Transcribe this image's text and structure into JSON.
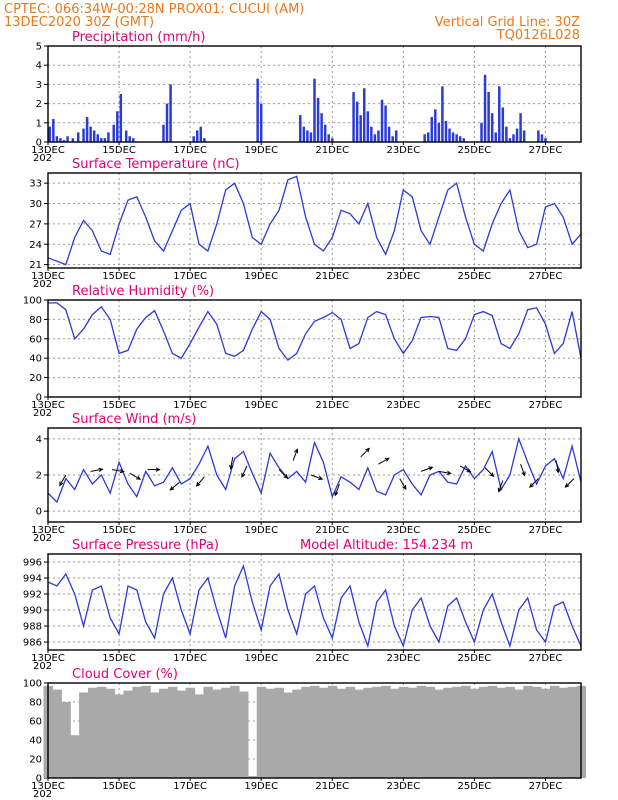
{
  "header": {
    "line1": "CPTEC:   066:34W-00:28N   PROX01: CUCUI (AM)",
    "line2_left": "13DEC2020 30Z (GMT)",
    "line2_right": "Vertical Grid Line: 30Z",
    "line3_right": "TQ0126L028"
  },
  "colors": {
    "header": "#e8791e",
    "title": "#e0007a",
    "series": "#2a3bd6",
    "cloud": "#a9a9a9",
    "arrow": "#000000"
  },
  "x_axis": {
    "labels": [
      "13DEC",
      "15DEC",
      "17DEC",
      "19DEC",
      "21DEC",
      "23DEC",
      "25DEC",
      "27DEC"
    ],
    "year_stub": "202",
    "days_span": 15
  },
  "chart_data": [
    {
      "id": "precip",
      "type": "bar",
      "title": "Precipitation (mm/h)",
      "ylim": [
        0,
        5
      ],
      "yticks": [
        0,
        1,
        2,
        3,
        4,
        5
      ],
      "x": [
        0.05,
        0.15,
        0.25,
        0.35,
        0.45,
        0.55,
        0.7,
        0.85,
        1.0,
        1.1,
        1.2,
        1.3,
        1.4,
        1.5,
        1.6,
        1.7,
        1.85,
        1.95,
        2.05,
        2.2,
        2.3,
        2.4,
        3.25,
        3.35,
        3.45,
        4.1,
        4.2,
        4.3,
        4.4,
        5.9,
        6.0,
        7.1,
        7.2,
        7.3,
        7.4,
        7.5,
        7.6,
        7.7,
        7.8,
        7.9,
        8.0,
        8.6,
        8.7,
        8.8,
        8.9,
        9.0,
        9.1,
        9.2,
        9.3,
        9.4,
        9.5,
        9.6,
        9.7,
        9.8,
        10.6,
        10.7,
        10.8,
        10.9,
        11.0,
        11.1,
        11.2,
        11.3,
        11.4,
        11.5,
        11.6,
        11.7,
        12.2,
        12.3,
        12.4,
        12.5,
        12.6,
        12.7,
        12.8,
        12.9,
        13.0,
        13.1,
        13.2,
        13.3,
        13.4,
        13.8,
        13.9,
        14.0
      ],
      "values": [
        0.8,
        1.2,
        0.3,
        0.2,
        0.1,
        0.3,
        0.2,
        0.5,
        0.7,
        1.3,
        0.8,
        0.6,
        0.4,
        0.2,
        0.2,
        0.5,
        0.9,
        1.6,
        2.5,
        0.6,
        0.3,
        0.2,
        0.9,
        2.0,
        3.0,
        0.3,
        0.6,
        0.8,
        0.2,
        3.3,
        2.0,
        1.4,
        0.8,
        0.6,
        0.5,
        3.3,
        2.3,
        1.5,
        0.9,
        0.4,
        0.2,
        2.6,
        2.1,
        1.4,
        2.8,
        1.6,
        0.8,
        0.4,
        0.6,
        2.2,
        1.9,
        0.8,
        0.3,
        0.6,
        0.4,
        0.5,
        1.3,
        1.7,
        1.0,
        2.9,
        1.1,
        0.7,
        0.5,
        0.4,
        0.3,
        0.2,
        1.0,
        3.5,
        2.6,
        1.5,
        0.5,
        2.9,
        1.8,
        0.8,
        0.2,
        0.4,
        0.7,
        1.5,
        0.6,
        0.6,
        0.4,
        0.2
      ]
    },
    {
      "id": "temp",
      "type": "line",
      "title": "Surface Temperature (nC)",
      "ylim": [
        20.5,
        34.5
      ],
      "yticks": [
        21,
        24,
        27,
        30,
        33
      ],
      "x": [
        0,
        0.25,
        0.5,
        0.75,
        1.0,
        1.25,
        1.5,
        1.75,
        2.0,
        2.25,
        2.5,
        2.75,
        3.0,
        3.25,
        3.5,
        3.75,
        4.0,
        4.25,
        4.5,
        4.75,
        5.0,
        5.25,
        5.5,
        5.75,
        6.0,
        6.25,
        6.5,
        6.75,
        7.0,
        7.25,
        7.5,
        7.75,
        8.0,
        8.25,
        8.5,
        8.75,
        9.0,
        9.25,
        9.5,
        9.75,
        10.0,
        10.25,
        10.5,
        10.75,
        11.0,
        11.25,
        11.5,
        11.75,
        12.0,
        12.25,
        12.5,
        12.75,
        13.0,
        13.25,
        13.5,
        13.75,
        14.0,
        14.25,
        14.5,
        14.75,
        15.0
      ],
      "values": [
        22,
        21.5,
        21,
        25,
        27.5,
        26,
        23,
        22.5,
        27,
        30.5,
        31,
        28,
        24.5,
        23,
        26,
        29,
        30,
        24,
        23,
        27,
        32,
        33,
        30,
        25,
        24,
        27,
        29,
        33.5,
        34,
        28,
        24,
        23,
        25,
        29,
        28.5,
        27,
        30,
        25,
        22.5,
        26,
        32,
        31,
        26,
        24,
        28,
        32,
        33,
        28,
        24,
        23,
        27,
        30,
        32,
        26,
        23.5,
        24,
        29.5,
        30,
        28,
        24,
        25.5
      ]
    },
    {
      "id": "humidity",
      "type": "line",
      "title": "Relative Humidity (%)",
      "ylim": [
        0,
        100
      ],
      "yticks": [
        0,
        20,
        40,
        60,
        80,
        100
      ],
      "x": [
        0,
        0.25,
        0.5,
        0.75,
        1.0,
        1.25,
        1.5,
        1.75,
        2.0,
        2.25,
        2.5,
        2.75,
        3.0,
        3.25,
        3.5,
        3.75,
        4.0,
        4.25,
        4.5,
        4.75,
        5.0,
        5.25,
        5.5,
        5.75,
        6.0,
        6.25,
        6.5,
        6.75,
        7.0,
        7.25,
        7.5,
        7.75,
        8.0,
        8.25,
        8.5,
        8.75,
        9.0,
        9.25,
        9.5,
        9.75,
        10.0,
        10.25,
        10.5,
        10.75,
        11.0,
        11.25,
        11.5,
        11.75,
        12.0,
        12.25,
        12.5,
        12.75,
        13.0,
        13.25,
        13.5,
        13.75,
        14.0,
        14.25,
        14.5,
        14.75,
        15.0
      ],
      "values": [
        97,
        97,
        90,
        60,
        70,
        85,
        93,
        80,
        45,
        48,
        70,
        82,
        89,
        68,
        45,
        40,
        55,
        72,
        88,
        75,
        45,
        42,
        48,
        70,
        88,
        80,
        50,
        38,
        45,
        65,
        78,
        82,
        87,
        80,
        50,
        55,
        82,
        88,
        85,
        60,
        45,
        58,
        82,
        83,
        82,
        50,
        48,
        60,
        85,
        88,
        84,
        55,
        50,
        65,
        90,
        92,
        75,
        45,
        55,
        88,
        40
      ]
    },
    {
      "id": "wind",
      "type": "line",
      "title": "Surface Wind (m/s)",
      "ylim": [
        -0.6,
        4.6
      ],
      "yticks": [
        0,
        2,
        4
      ],
      "x": [
        0,
        0.25,
        0.5,
        0.75,
        1.0,
        1.25,
        1.5,
        1.75,
        2.0,
        2.25,
        2.5,
        2.75,
        3.0,
        3.25,
        3.5,
        3.75,
        4.0,
        4.25,
        4.5,
        4.75,
        5.0,
        5.25,
        5.5,
        5.75,
        6.0,
        6.25,
        6.5,
        6.75,
        7.0,
        7.25,
        7.5,
        7.75,
        8.0,
        8.25,
        8.5,
        8.75,
        9.0,
        9.25,
        9.5,
        9.75,
        10.0,
        10.25,
        10.5,
        10.75,
        11.0,
        11.25,
        11.5,
        11.75,
        12.0,
        12.25,
        12.5,
        12.75,
        13.0,
        13.25,
        13.5,
        13.75,
        14.0,
        14.25,
        14.5,
        14.75,
        15.0
      ],
      "values": [
        1.0,
        0.5,
        1.8,
        1.2,
        2.3,
        1.5,
        2.0,
        1.0,
        2.7,
        1.5,
        0.8,
        2.2,
        1.4,
        1.6,
        2.4,
        1.5,
        1.8,
        2.6,
        3.6,
        2.0,
        1.2,
        2.9,
        3.3,
        2.1,
        1.0,
        3.2,
        2.4,
        1.8,
        2.2,
        1.6,
        3.8,
        2.7,
        0.8,
        1.9,
        1.6,
        1.2,
        2.4,
        1.1,
        0.9,
        2.0,
        2.3,
        1.5,
        0.9,
        2.0,
        2.2,
        1.6,
        1.5,
        2.5,
        1.8,
        2.3,
        3.3,
        1.2,
        2.0,
        4.0,
        2.7,
        1.5,
        2.5,
        2.9,
        1.8,
        3.6,
        1.6
      ],
      "arrows": [
        {
          "x": 0.5,
          "s": 2.0,
          "dir": -120
        },
        {
          "x": 1.2,
          "s": 2.2,
          "dir": 10
        },
        {
          "x": 1.8,
          "s": 2.3,
          "dir": -10
        },
        {
          "x": 2.3,
          "s": 2.1,
          "dir": -30
        },
        {
          "x": 2.8,
          "s": 2.3,
          "dir": 0
        },
        {
          "x": 3.7,
          "s": 1.6,
          "dir": -140
        },
        {
          "x": 4.4,
          "s": 1.9,
          "dir": -130
        },
        {
          "x": 5.2,
          "s": 3.0,
          "dir": -100
        },
        {
          "x": 5.6,
          "s": 2.5,
          "dir": -115
        },
        {
          "x": 6.5,
          "s": 2.3,
          "dir": -45
        },
        {
          "x": 6.9,
          "s": 2.8,
          "dir": 70
        },
        {
          "x": 7.4,
          "s": 2.0,
          "dir": -20
        },
        {
          "x": 8.2,
          "s": 1.5,
          "dir": -110
        },
        {
          "x": 8.8,
          "s": 3.0,
          "dir": 45
        },
        {
          "x": 9.3,
          "s": 2.6,
          "dir": 30
        },
        {
          "x": 9.9,
          "s": 1.8,
          "dir": -60
        },
        {
          "x": 10.5,
          "s": 2.2,
          "dir": 20
        },
        {
          "x": 11.0,
          "s": 2.2,
          "dir": -10
        },
        {
          "x": 11.6,
          "s": 2.5,
          "dir": -30
        },
        {
          "x": 12.3,
          "s": 2.4,
          "dir": -45
        },
        {
          "x": 12.8,
          "s": 1.7,
          "dir": -110
        },
        {
          "x": 13.3,
          "s": 2.6,
          "dir": -70
        },
        {
          "x": 13.8,
          "s": 1.8,
          "dir": -135
        },
        {
          "x": 14.3,
          "s": 2.8,
          "dir": -80
        },
        {
          "x": 14.8,
          "s": 1.8,
          "dir": -135
        }
      ]
    },
    {
      "id": "pressure",
      "type": "line",
      "title": "Surface Pressure (hPa)",
      "annotation": "Model Altitude: 154.234 m",
      "ylim": [
        985,
        997
      ],
      "yticks": [
        986,
        988,
        990,
        992,
        994,
        996
      ],
      "x": [
        0,
        0.25,
        0.5,
        0.75,
        1.0,
        1.25,
        1.5,
        1.75,
        2.0,
        2.25,
        2.5,
        2.75,
        3.0,
        3.25,
        3.5,
        3.75,
        4.0,
        4.25,
        4.5,
        4.75,
        5.0,
        5.25,
        5.5,
        5.75,
        6.0,
        6.25,
        6.5,
        6.75,
        7.0,
        7.25,
        7.5,
        7.75,
        8.0,
        8.25,
        8.5,
        8.75,
        9.0,
        9.25,
        9.5,
        9.75,
        10.0,
        10.25,
        10.5,
        10.75,
        11.0,
        11.25,
        11.5,
        11.75,
        12.0,
        12.25,
        12.5,
        12.75,
        13.0,
        13.25,
        13.5,
        13.75,
        14.0,
        14.25,
        14.5,
        14.75,
        15.0
      ],
      "values": [
        993.5,
        993,
        994.5,
        992,
        988,
        992.5,
        993,
        989,
        987,
        993,
        992.5,
        988.5,
        986.5,
        992,
        994,
        990,
        987,
        992.5,
        994,
        990,
        986.5,
        993,
        995.5,
        991,
        987.5,
        993,
        994.5,
        990,
        987,
        992,
        993,
        989,
        986.5,
        991.5,
        993,
        988.5,
        985.5,
        991,
        992.5,
        988,
        985.5,
        990,
        991.5,
        988,
        986,
        990.5,
        991.5,
        988.5,
        986,
        990,
        992,
        988.5,
        985.5,
        990,
        991.5,
        987.5,
        986,
        990.5,
        991,
        988,
        985.5
      ]
    },
    {
      "id": "cloud",
      "type": "area",
      "title": "Cloud Cover (%)",
      "ylim": [
        0,
        100
      ],
      "yticks": [
        0,
        20,
        40,
        60,
        80,
        100
      ],
      "x": [
        0,
        0.25,
        0.5,
        0.75,
        1.0,
        1.25,
        1.5,
        1.75,
        2.0,
        2.25,
        2.5,
        2.75,
        3.0,
        3.25,
        3.5,
        3.75,
        4.0,
        4.25,
        4.5,
        4.75,
        5.0,
        5.25,
        5.5,
        5.75,
        6.0,
        6.25,
        6.5,
        6.75,
        7.0,
        7.25,
        7.5,
        7.75,
        8.0,
        8.25,
        8.5,
        8.75,
        9.0,
        9.25,
        9.5,
        9.75,
        10.0,
        10.25,
        10.5,
        10.75,
        11.0,
        11.25,
        11.5,
        11.75,
        12.0,
        12.25,
        12.5,
        12.75,
        13.0,
        13.25,
        13.5,
        13.75,
        14.0,
        14.25,
        14.5,
        14.75,
        15.0
      ],
      "values": [
        97,
        93,
        80,
        45,
        90,
        95,
        96,
        94,
        88,
        92,
        96,
        97,
        90,
        94,
        96,
        92,
        95,
        88,
        96,
        93,
        95,
        97,
        91,
        2,
        96,
        94,
        95,
        90,
        93,
        96,
        97,
        95,
        97,
        94,
        96,
        93,
        95,
        96,
        97,
        94,
        96,
        95,
        97,
        96,
        93,
        95,
        96,
        97,
        94,
        96,
        97,
        95,
        96,
        93,
        97,
        96,
        94,
        97,
        95,
        96,
        97
      ]
    }
  ]
}
